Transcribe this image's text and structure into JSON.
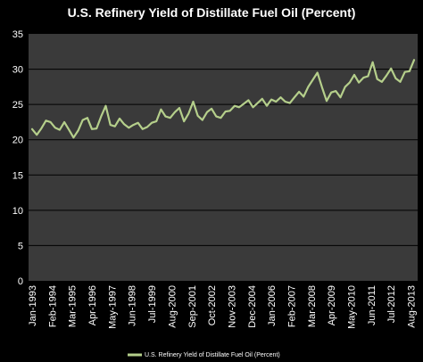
{
  "chart_data": {
    "type": "line",
    "title": "U.S. Refinery Yield of Distillate Fuel Oil (Percent)",
    "xlabel": "",
    "ylabel": "",
    "ylim": [
      0,
      35
    ],
    "yticks": [
      "0",
      "5",
      "10",
      "15",
      "20",
      "25",
      "30",
      "35"
    ],
    "xticks": [
      "Jan-1993",
      "Feb-1994",
      "Mar-1995",
      "Apr-1996",
      "May-1997",
      "Jun-1998",
      "Jul-1999",
      "Aug-2000",
      "Sep-2001",
      "Oct-2002",
      "Nov-2003",
      "Dec-2004",
      "Jan-2006",
      "Feb-2007",
      "Mar-2008",
      "Apr-2009",
      "May-2010",
      "Jun-2011",
      "Jul-2012",
      "Aug-2013"
    ],
    "grid": true,
    "legend_position": "bottom",
    "colors": {
      "background": "#000000",
      "plot_area": "#3a3a3a",
      "gridline": "#000000",
      "line": "#b5cf8b",
      "text": "#ffffff"
    },
    "series": [
      {
        "name": "U.S. Refinery Yield of Distillate Fuel Oil (Percent)",
        "x": [
          "1993-01",
          "1993-04",
          "1993-07",
          "1993-10",
          "1994-01",
          "1994-04",
          "1994-07",
          "1994-10",
          "1995-01",
          "1995-04",
          "1995-07",
          "1995-10",
          "1996-01",
          "1996-04",
          "1996-07",
          "1996-10",
          "1997-01",
          "1997-04",
          "1997-07",
          "1997-10",
          "1998-01",
          "1998-04",
          "1998-07",
          "1998-10",
          "1999-01",
          "1999-04",
          "1999-07",
          "1999-10",
          "2000-01",
          "2000-04",
          "2000-07",
          "2000-10",
          "2001-01",
          "2001-04",
          "2001-07",
          "2001-10",
          "2002-01",
          "2002-04",
          "2002-07",
          "2002-10",
          "2003-01",
          "2003-04",
          "2003-07",
          "2003-10",
          "2004-01",
          "2004-04",
          "2004-07",
          "2004-10",
          "2005-01",
          "2005-04",
          "2005-07",
          "2005-10",
          "2006-01",
          "2006-04",
          "2006-07",
          "2006-10",
          "2007-01",
          "2007-04",
          "2007-07",
          "2007-10",
          "2008-01",
          "2008-04",
          "2008-07",
          "2008-10",
          "2009-01",
          "2009-04",
          "2009-07",
          "2009-10",
          "2010-01",
          "2010-04",
          "2010-07",
          "2010-10",
          "2011-01",
          "2011-04",
          "2011-07",
          "2011-10",
          "2012-01",
          "2012-04",
          "2012-07",
          "2012-10",
          "2013-01",
          "2013-04",
          "2013-07",
          "2013-10"
        ],
        "values": [
          21.5,
          20.7,
          21.6,
          22.7,
          22.5,
          21.7,
          21.4,
          22.5,
          21.4,
          20.3,
          21.3,
          22.8,
          23.1,
          21.5,
          21.6,
          23.3,
          24.8,
          22.1,
          21.9,
          23.0,
          22.2,
          21.7,
          22.1,
          22.4,
          21.5,
          21.8,
          22.4,
          22.6,
          24.3,
          23.3,
          23.1,
          23.9,
          24.5,
          22.6,
          23.7,
          25.4,
          23.4,
          22.8,
          23.9,
          24.4,
          23.3,
          23.1,
          24.0,
          24.1,
          24.8,
          24.6,
          25.1,
          25.6,
          24.6,
          25.2,
          25.8,
          24.8,
          25.7,
          25.4,
          26.0,
          25.4,
          25.2,
          26.0,
          26.8,
          26.1,
          27.5,
          28.5,
          29.5,
          27.4,
          25.5,
          26.7,
          26.9,
          26.0,
          27.5,
          28.1,
          29.2,
          28.1,
          28.8,
          29.0,
          31.0,
          28.6,
          28.2,
          29.1,
          30.1,
          28.7,
          28.2,
          29.6,
          29.7,
          31.3
        ]
      }
    ]
  }
}
